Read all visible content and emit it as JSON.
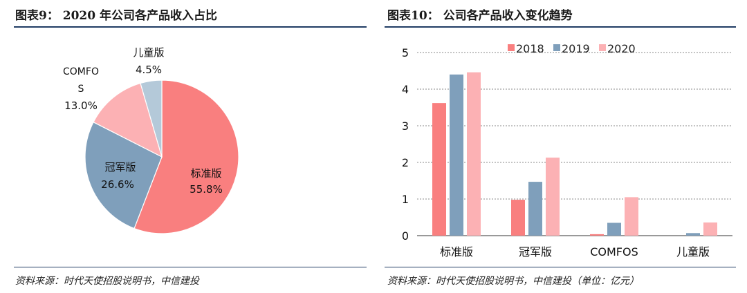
{
  "left": {
    "title": "图表9：  2020 年公司各产品收入占比",
    "source": "资料来源：时代天使招股说明书，中信建投"
  },
  "right": {
    "title": "图表10：  公司各产品收入变化趋势",
    "source": "资料来源：时代天使招股说明书，中信建投（单位：亿元）"
  },
  "colors": {
    "rule": "#1f3b63",
    "grid": "#888888"
  },
  "chart_data": [
    {
      "type": "pie",
      "slices": [
        {
          "label": "标准版",
          "value": 55.8,
          "value_label": "55.8%",
          "color": "#f97f7f"
        },
        {
          "label": "冠军版",
          "value": 26.6,
          "value_label": "26.6%",
          "color": "#7f9fbb"
        },
        {
          "label": "COMFOS",
          "value": 13.0,
          "value_label": "13.0%",
          "color": "#fcb1b4"
        },
        {
          "label": "儿童版",
          "value": 4.5,
          "value_label": "4.5%",
          "color": "#b4c9d9"
        }
      ]
    },
    {
      "type": "bar",
      "categories": [
        "标准版",
        "冠军版",
        "COMFOS",
        "儿童版"
      ],
      "series": [
        {
          "name": "2018",
          "color": "#f97f7f",
          "values": [
            3.62,
            0.98,
            0.04,
            0.0
          ]
        },
        {
          "name": "2019",
          "color": "#7f9fbb",
          "values": [
            4.4,
            1.47,
            0.35,
            0.07
          ]
        },
        {
          "name": "2020",
          "color": "#fcb1b4",
          "values": [
            4.46,
            2.13,
            1.05,
            0.36
          ]
        }
      ],
      "ylim": [
        0,
        5
      ],
      "yticks": [
        "0",
        "1",
        "2",
        "3",
        "4",
        "5"
      ],
      "grid": "dashed horizontal",
      "legend": "top"
    }
  ]
}
